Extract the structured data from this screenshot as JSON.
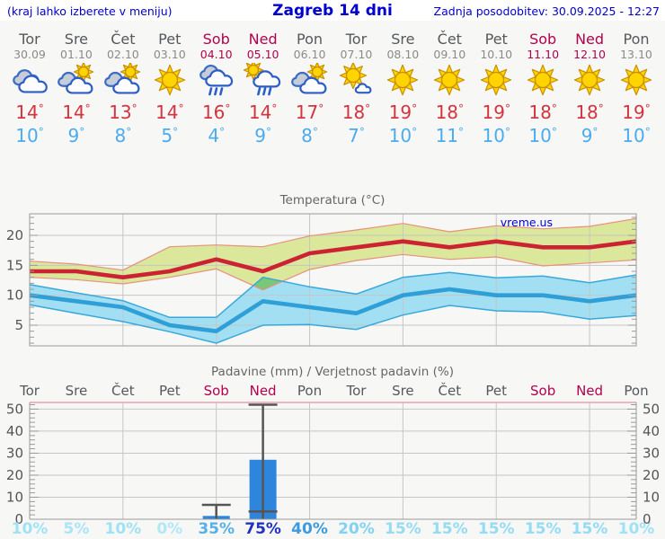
{
  "header": {
    "left": "(kraj lahko izberete v meniju)",
    "title": "Zagreb 14 dni",
    "updated": "Zadnja posodobitev: 30.09.2025 - 12:27"
  },
  "units": {
    "degree": "°"
  },
  "watermark": "vreme.us",
  "colors": {
    "accent_blue": "#0000cc",
    "weekday_text": "#55585c",
    "date_text": "#8a8a8a",
    "weekend_text": "#b4004e",
    "high_temp": "#d5333e",
    "low_temp": "#4aabee",
    "max_line": "#cc2333",
    "max_band": "#dbe89c",
    "max_band_edge": "#e8907c",
    "min_line": "#2e9fd7",
    "min_band": "#a2dff2",
    "min_band_edge": "#38a8da",
    "band_overlap": "#79c878",
    "bar_fill": "#2e86dc",
    "whisker": "#555555",
    "grid": "#c6c6c6",
    "axis": "#9a9a9a",
    "precip_top_border": "#ea9fae",
    "tick_label": "#555555"
  },
  "days": [
    {
      "name": "Tor",
      "date": "30.09",
      "weekend": false,
      "icon": "cloudy",
      "high": "14",
      "low": "10",
      "prob": "10%",
      "prob_color": "#9fe2f6"
    },
    {
      "name": "Sre",
      "date": "01.10",
      "weekend": false,
      "icon": "partly-cloudy",
      "high": "14",
      "low": "9",
      "prob": "5%",
      "prob_color": "#a8e5f8"
    },
    {
      "name": "Čet",
      "date": "02.10",
      "weekend": false,
      "icon": "partly-cloudy",
      "high": "13",
      "low": "8",
      "prob": "10%",
      "prob_color": "#9fe2f6"
    },
    {
      "name": "Pet",
      "date": "03.10",
      "weekend": false,
      "icon": "sunny",
      "high": "14",
      "low": "5",
      "prob": "0%",
      "prob_color": "#b0e8f9"
    },
    {
      "name": "Sob",
      "date": "04.10",
      "weekend": true,
      "icon": "rain",
      "high": "16",
      "low": "4",
      "prob": "35%",
      "prob_color": "#56b0e9"
    },
    {
      "name": "Ned",
      "date": "05.10",
      "weekend": true,
      "icon": "sun-rain",
      "high": "14",
      "low": "9",
      "prob": "75%",
      "prob_color": "#2231c1"
    },
    {
      "name": "Pon",
      "date": "06.10",
      "weekend": false,
      "icon": "partly-cloudy",
      "high": "17",
      "low": "8",
      "prob": "40%",
      "prob_color": "#3c9bdf"
    },
    {
      "name": "Tor",
      "date": "07.10",
      "weekend": false,
      "icon": "mostly-sunny",
      "high": "18",
      "low": "7",
      "prob": "20%",
      "prob_color": "#7fd3f0"
    },
    {
      "name": "Sre",
      "date": "08.10",
      "weekend": false,
      "icon": "sunny",
      "high": "19",
      "low": "10",
      "prob": "15%",
      "prob_color": "#93dcf4"
    },
    {
      "name": "Čet",
      "date": "09.10",
      "weekend": false,
      "icon": "sunny",
      "high": "18",
      "low": "11",
      "prob": "15%",
      "prob_color": "#93dcf4"
    },
    {
      "name": "Pet",
      "date": "10.10",
      "weekend": false,
      "icon": "sunny",
      "high": "19",
      "low": "10",
      "prob": "15%",
      "prob_color": "#93dcf4"
    },
    {
      "name": "Sob",
      "date": "11.10",
      "weekend": true,
      "icon": "sunny",
      "high": "18",
      "low": "10",
      "prob": "15%",
      "prob_color": "#93dcf4"
    },
    {
      "name": "Ned",
      "date": "12.10",
      "weekend": true,
      "icon": "sunny",
      "high": "18",
      "low": "9",
      "prob": "15%",
      "prob_color": "#93dcf4"
    },
    {
      "name": "Pon",
      "date": "13.10",
      "weekend": false,
      "icon": "sunny",
      "high": "19",
      "low": "10",
      "prob": "10%",
      "prob_color": "#9fe2f6"
    }
  ],
  "chart_data": [
    {
      "type": "line",
      "title": "Temperatura (°C)",
      "x_labels": [
        "Tor 30.09",
        "Sre 01.10",
        "Čet 02.10",
        "Pet 03.10",
        "Sob 04.10",
        "Ned 05.10",
        "Pon 06.10",
        "Tor 07.10",
        "Sre 08.10",
        "Čet 09.10",
        "Pet 10.10",
        "Sob 11.10",
        "Ned 12.10",
        "Pon 13.10"
      ],
      "ylabel": "°C",
      "ylim": [
        1.5,
        23.6
      ],
      "yticks": [
        5,
        10,
        15,
        20
      ],
      "grid": true,
      "vgrid_day_indices": [
        2,
        4,
        6,
        8,
        10,
        12
      ],
      "series": [
        {
          "name": "max_temp",
          "values": [
            14,
            14,
            13,
            14,
            16,
            14,
            17,
            18,
            19,
            18,
            19,
            18,
            18,
            19
          ]
        },
        {
          "name": "max_range_high",
          "values": [
            15.7,
            15.2,
            14.2,
            18.1,
            18.4,
            18.1,
            19.9,
            20.9,
            22.0,
            20.6,
            21.6,
            21.1,
            21.5,
            22.8
          ]
        },
        {
          "name": "max_range_low",
          "values": [
            13.0,
            12.6,
            11.9,
            13.0,
            14.4,
            10.9,
            14.3,
            15.8,
            16.8,
            16.0,
            16.4,
            14.9,
            15.4,
            15.9
          ]
        },
        {
          "name": "min_temp",
          "values": [
            10,
            9,
            8,
            5,
            4,
            9,
            8,
            7,
            10,
            11,
            10,
            10,
            9,
            10
          ]
        },
        {
          "name": "min_range_high",
          "values": [
            11.8,
            10.4,
            9.1,
            6.3,
            6.3,
            13.0,
            11.4,
            10.2,
            13.0,
            13.8,
            12.9,
            13.2,
            12.1,
            13.4
          ]
        },
        {
          "name": "min_range_low",
          "values": [
            8.4,
            7.0,
            5.6,
            3.9,
            2.0,
            5.0,
            5.1,
            4.3,
            6.7,
            8.3,
            7.4,
            7.2,
            6.0,
            6.6
          ]
        }
      ]
    },
    {
      "type": "bar",
      "title": "Padavine (mm) / Verjetnost padavin (%)",
      "categories": [
        "Tor",
        "Sre",
        "Čet",
        "Pet",
        "Sob",
        "Ned",
        "Pon",
        "Tor",
        "Sre",
        "Čet",
        "Pet",
        "Sob",
        "Ned",
        "Pon"
      ],
      "values": [
        0,
        0,
        0,
        0,
        1.5,
        27,
        0,
        0,
        0,
        0,
        0,
        0,
        0,
        0
      ],
      "whisker_low": [
        null,
        null,
        null,
        null,
        null,
        3.5,
        null,
        null,
        null,
        null,
        null,
        null,
        null,
        null
      ],
      "whisker_high": [
        null,
        null,
        null,
        null,
        6.5,
        52,
        null,
        null,
        null,
        null,
        null,
        null,
        null,
        null
      ],
      "probabilities": [
        "10%",
        "5%",
        "10%",
        "0%",
        "35%",
        "75%",
        "40%",
        "20%",
        "15%",
        "15%",
        "15%",
        "15%",
        "15%",
        "10%"
      ],
      "ylabel": "mm",
      "ylim": [
        0,
        53
      ],
      "yticks": [
        0,
        10,
        20,
        30,
        40,
        50
      ],
      "grid": true,
      "vgrid_day_indices": [
        2,
        4,
        6,
        8,
        10,
        12
      ],
      "legend_position": "none"
    }
  ]
}
